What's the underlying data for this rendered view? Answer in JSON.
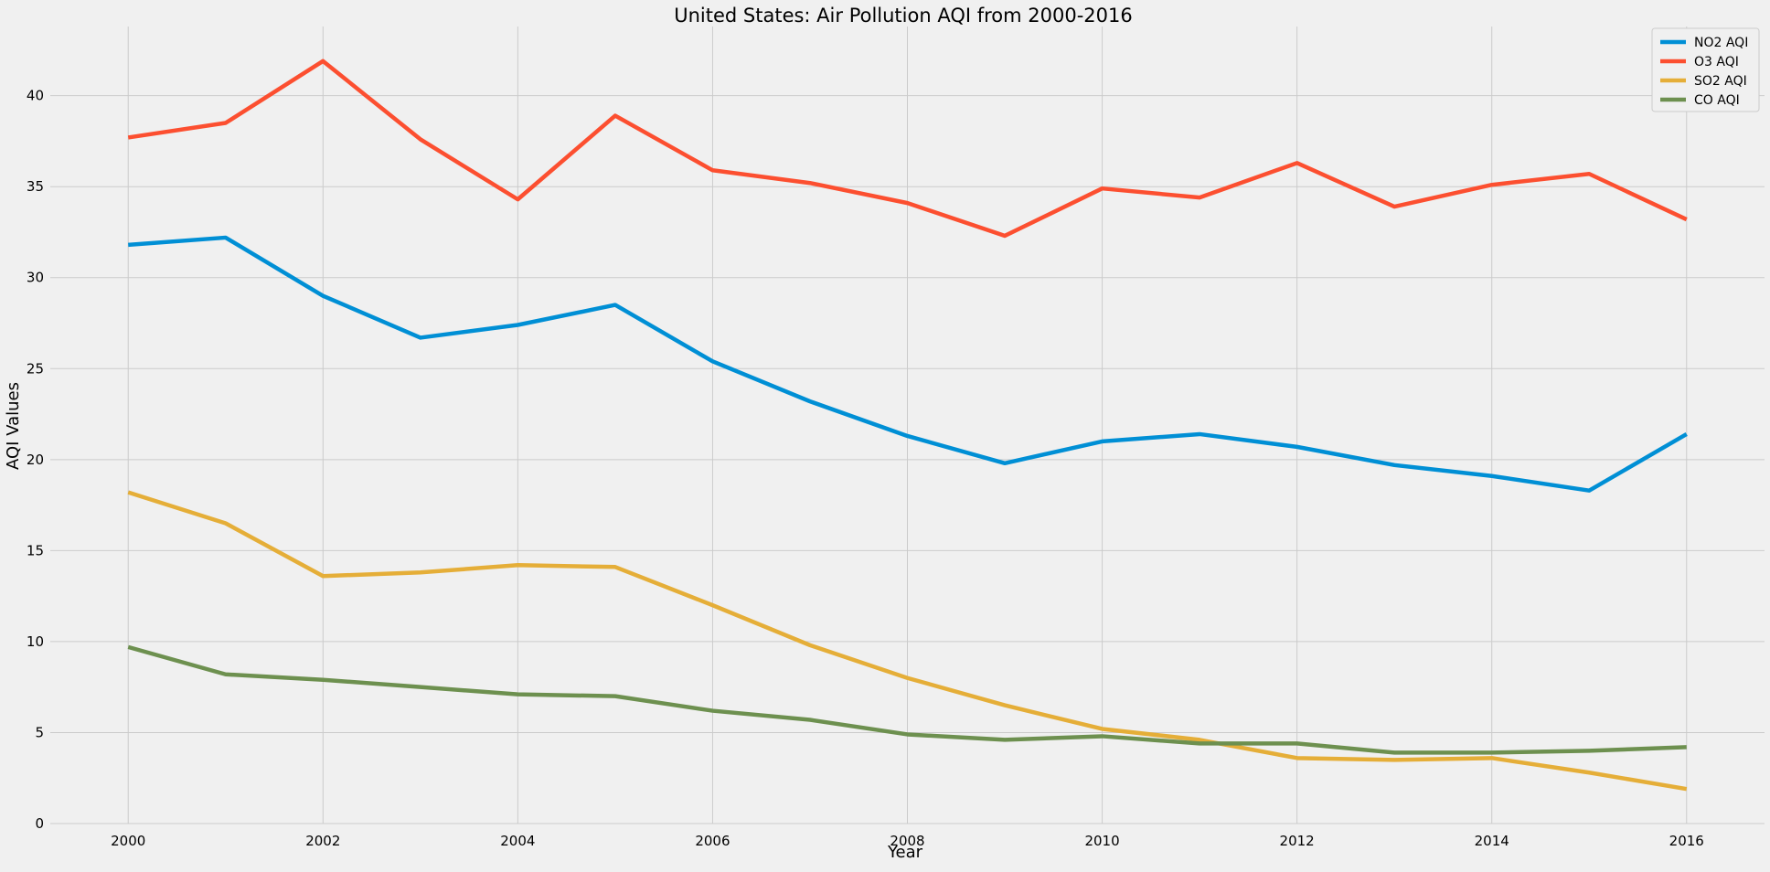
{
  "chart_data": {
    "type": "line",
    "title": "United States: Air Pollution AQI from 2000-2016",
    "xlabel": "Year",
    "ylabel": "AQI Values",
    "x": [
      2000,
      2001,
      2002,
      2003,
      2004,
      2005,
      2006,
      2007,
      2008,
      2009,
      2010,
      2011,
      2012,
      2013,
      2014,
      2015,
      2016
    ],
    "xlim": [
      1999.2,
      2016.8
    ],
    "ylim": [
      0,
      43.8
    ],
    "xticks": [
      2000,
      2002,
      2004,
      2006,
      2008,
      2010,
      2012,
      2014,
      2016
    ],
    "yticks": [
      0,
      5,
      10,
      15,
      20,
      25,
      30,
      35,
      40
    ],
    "grid": true,
    "legend_position": "top-right",
    "series": [
      {
        "name": "NO2 AQI",
        "color": "#008fd5",
        "values": [
          31.8,
          32.2,
          29.0,
          26.7,
          27.4,
          28.5,
          25.4,
          23.2,
          21.3,
          19.8,
          21.0,
          21.4,
          20.7,
          19.7,
          19.1,
          18.3,
          21.4
        ]
      },
      {
        "name": "O3 AQI",
        "color": "#fc4f30",
        "values": [
          37.7,
          38.5,
          41.9,
          37.6,
          34.3,
          38.9,
          35.9,
          35.2,
          34.1,
          32.3,
          34.9,
          34.4,
          36.3,
          33.9,
          35.1,
          35.7,
          33.2
        ]
      },
      {
        "name": "SO2 AQI",
        "color": "#e5ae38",
        "values": [
          18.2,
          16.5,
          13.6,
          13.8,
          14.2,
          14.1,
          12.0,
          9.8,
          8.0,
          6.5,
          5.2,
          4.6,
          3.6,
          3.5,
          3.6,
          2.8,
          1.9
        ]
      },
      {
        "name": "CO AQI",
        "color": "#6d904f",
        "values": [
          9.7,
          8.2,
          7.9,
          7.5,
          7.1,
          7.0,
          6.2,
          5.7,
          4.9,
          4.6,
          4.8,
          4.4,
          4.4,
          3.9,
          3.9,
          4.0,
          4.2
        ]
      }
    ]
  }
}
